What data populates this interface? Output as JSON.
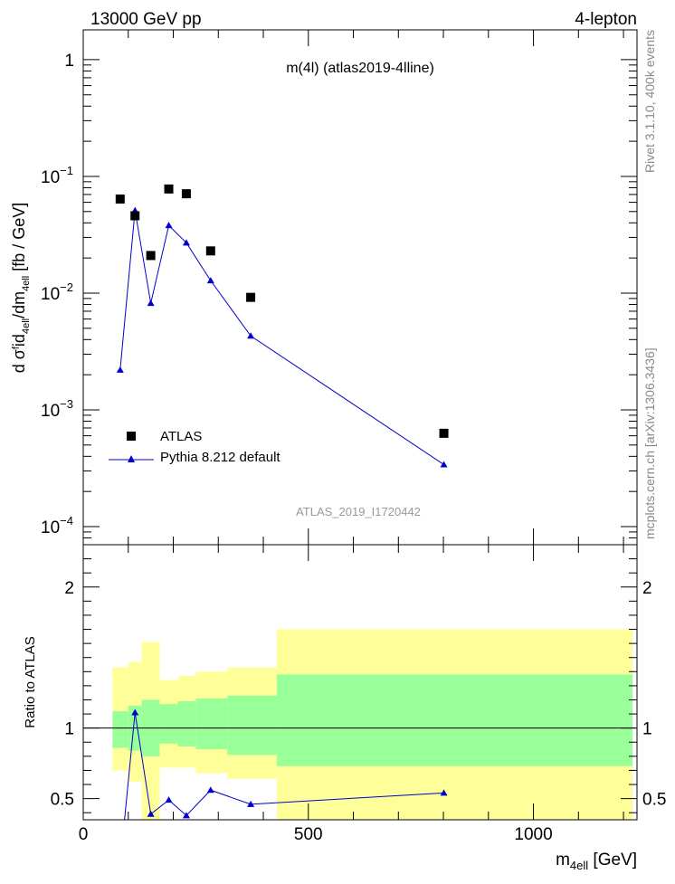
{
  "header": {
    "left": "13000 GeV pp",
    "right": "4-lepton"
  },
  "side_labels": {
    "rivet": "Rivet 3.1.10,  400k events",
    "mcplots": "mcplots.cern.ch [arXiv:1306.3436]"
  },
  "chart_data": [
    {
      "type": "scatter",
      "title": "m(4l) (atlas2019-4lline)",
      "watermark": "ATLAS_2019_I1720442",
      "ylabel": "d σ^{f}id_{4ell}/dm_{4ell} [fb / GeV]",
      "yscale": "log",
      "ylim": [
        7e-05,
        1.8
      ],
      "xlim": [
        0,
        1230
      ],
      "y_ticks": [
        {
          "value": 1,
          "label": "1"
        },
        {
          "value": 0.1,
          "label": "10",
          "exp": "−1"
        },
        {
          "value": 0.01,
          "label": "10",
          "exp": "−2"
        },
        {
          "value": 0.001,
          "label": "10",
          "exp": "−3"
        },
        {
          "value": 0.0001,
          "label": "10",
          "exp": "−4"
        }
      ],
      "legend": [
        {
          "name": "ATLAS",
          "marker": "square",
          "color": "#000000"
        },
        {
          "name": "Pythia 8.212 default",
          "marker": "triangle",
          "color": "#0000cc"
        }
      ],
      "series": [
        {
          "name": "ATLAS",
          "x": [
            82,
            115,
            150,
            190,
            229,
            283,
            372,
            801
          ],
          "y": [
            0.064,
            0.046,
            0.021,
            0.078,
            0.071,
            0.023,
            0.0092,
            0.00063
          ]
        },
        {
          "name": "Pythia 8.212 default",
          "x": [
            82,
            115,
            150,
            190,
            229,
            283,
            372,
            801
          ],
          "y": [
            0.0022,
            0.051,
            0.0082,
            0.038,
            0.027,
            0.0128,
            0.0043,
            0.00034
          ]
        }
      ]
    },
    {
      "type": "area",
      "ylabel": "Ratio to ATLAS",
      "xlabel": "m_{4ell} [GeV]",
      "xlim": [
        0,
        1230
      ],
      "ylim": [
        0.35,
        2.3
      ],
      "x_ticks": [
        0,
        500,
        1000
      ],
      "y_ticks": [
        0.5,
        1,
        2
      ],
      "bands": [
        {
          "x0": 65,
          "x1": 100,
          "green": [
            0.86,
            1.12
          ],
          "yellow": [
            0.7,
            1.43
          ]
        },
        {
          "x0": 100,
          "x1": 130,
          "green": [
            0.84,
            1.16
          ],
          "yellow": [
            0.62,
            1.47
          ]
        },
        {
          "x0": 130,
          "x1": 170,
          "green": [
            0.8,
            1.2
          ],
          "yellow": [
            0.35,
            1.61
          ]
        },
        {
          "x0": 170,
          "x1": 210,
          "green": [
            0.89,
            1.17
          ],
          "yellow": [
            0.72,
            1.34
          ]
        },
        {
          "x0": 210,
          "x1": 250,
          "green": [
            0.87,
            1.19
          ],
          "yellow": [
            0.72,
            1.37
          ]
        },
        {
          "x0": 250,
          "x1": 320,
          "green": [
            0.85,
            1.21
          ],
          "yellow": [
            0.68,
            1.4
          ]
        },
        {
          "x0": 320,
          "x1": 430,
          "green": [
            0.81,
            1.23
          ],
          "yellow": [
            0.64,
            1.43
          ]
        },
        {
          "x0": 430,
          "x1": 1220,
          "green": [
            0.73,
            1.38
          ],
          "yellow": [
            0.35,
            1.7
          ]
        }
      ],
      "series": [
        {
          "name": "Pythia 8.212 default",
          "x": [
            82,
            115,
            150,
            190,
            229,
            283,
            372,
            801
          ],
          "y": [
            0.034,
            1.11,
            0.39,
            0.49,
            0.38,
            0.56,
            0.46,
            0.54
          ]
        }
      ]
    }
  ]
}
